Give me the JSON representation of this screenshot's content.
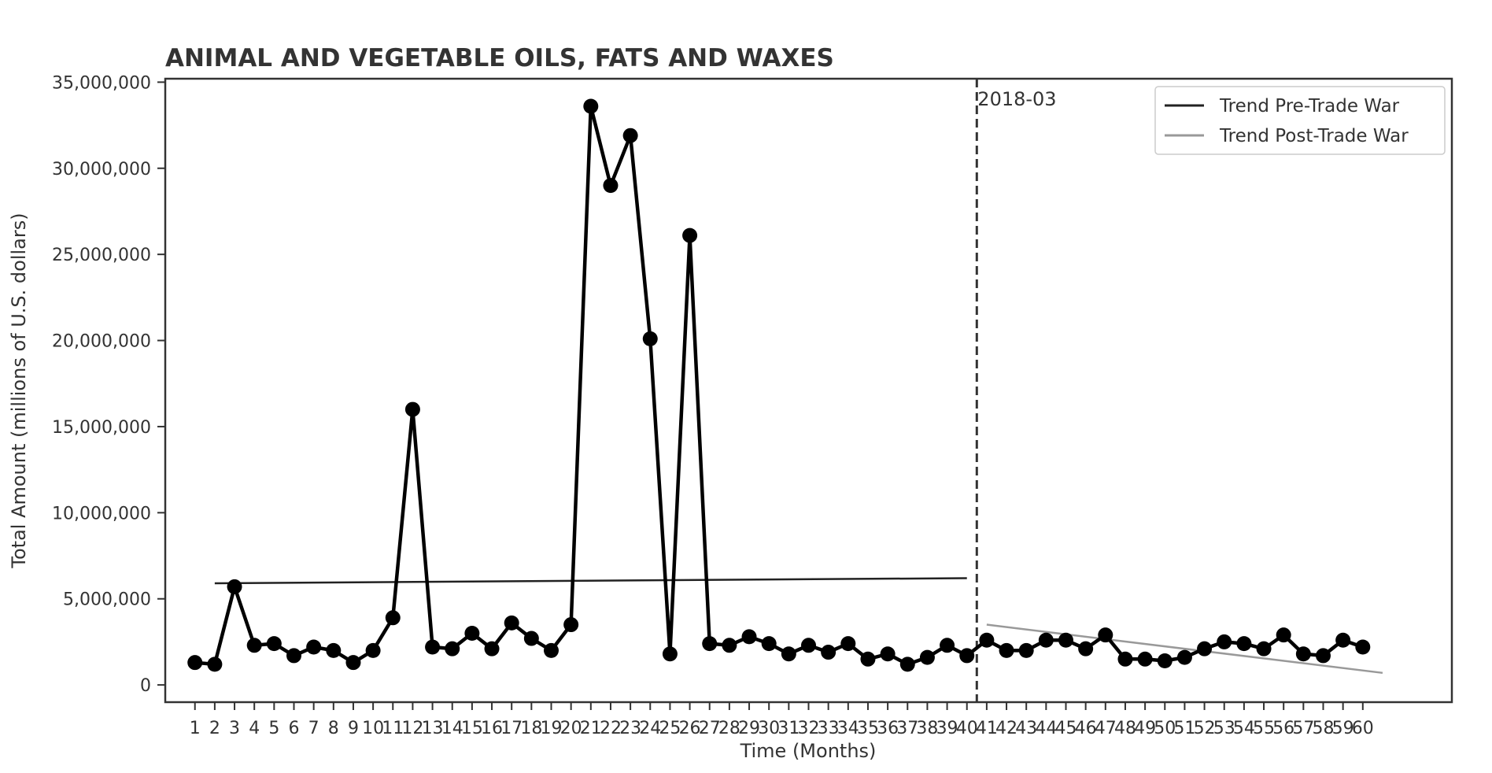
{
  "chart_data": {
    "type": "line",
    "title": "ANIMAL AND VEGETABLE OILS, FATS AND WAXES",
    "xlabel": "Time (Months)",
    "ylabel": "Total Amount (millions of U.S. dollars)",
    "x": [
      1,
      2,
      3,
      4,
      5,
      6,
      7,
      8,
      9,
      10,
      11,
      12,
      13,
      14,
      15,
      16,
      17,
      18,
      19,
      20,
      21,
      22,
      23,
      24,
      25,
      26,
      27,
      28,
      29,
      30,
      31,
      32,
      33,
      34,
      35,
      36,
      37,
      38,
      39,
      40,
      41,
      42,
      43,
      44,
      45,
      46,
      47,
      48,
      49,
      50,
      51,
      52,
      53,
      54,
      55,
      56,
      57,
      58,
      59,
      60
    ],
    "xlim": [
      -0.5,
      64.5
    ],
    "ylim": [
      -1000000,
      35200000
    ],
    "yticks": [
      0,
      5000000,
      10000000,
      15000000,
      20000000,
      25000000,
      30000000,
      35000000
    ],
    "ytick_labels": [
      "0",
      "5,000,000",
      "10,000,000",
      "15,000,000",
      "20,000,000",
      "25,000,000",
      "30,000,000",
      "35,000,000"
    ],
    "series": [
      {
        "values": [
          1300000,
          1200000,
          5700000,
          2300000,
          2400000,
          1700000,
          2200000,
          2000000,
          1300000,
          2000000,
          3900000,
          16000000,
          2200000,
          2100000,
          3000000,
          2100000,
          3600000,
          2700000,
          2000000,
          3500000,
          33600000,
          29000000,
          31900000,
          20100000,
          1800000,
          26100000,
          2400000,
          2300000,
          2800000,
          2400000,
          1800000,
          2300000,
          1900000,
          2400000,
          1500000,
          1800000,
          1200000,
          1600000,
          2300000,
          1700000,
          2600000,
          2000000,
          2000000,
          2600000,
          2600000,
          2100000,
          2900000,
          1500000,
          1500000,
          1400000,
          1600000,
          2100000,
          2500000,
          2400000,
          2100000,
          2900000,
          1800000,
          1700000,
          2600000,
          2200000
        ],
        "color": "#000000",
        "marker": "circle"
      }
    ],
    "trend_lines": [
      {
        "name": "Trend Pre-Trade War",
        "x": [
          2,
          40
        ],
        "y": [
          5900000,
          6200000
        ],
        "color": "#222222"
      },
      {
        "name": "Trend Post-Trade War",
        "x": [
          41,
          61
        ],
        "y": [
          3500000,
          700000
        ],
        "color": "#999999"
      }
    ],
    "annotations": [
      {
        "type": "vline",
        "x": 40.5,
        "label": "2018-03",
        "style": "dashed",
        "color": "#333333"
      }
    ],
    "grid": false,
    "legend_position": "top-right"
  }
}
